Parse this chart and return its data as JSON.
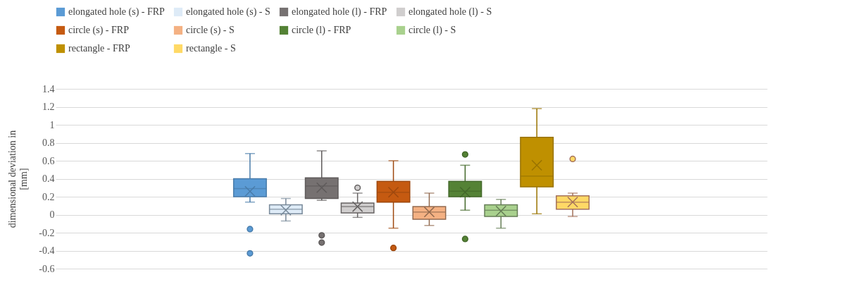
{
  "chart_data": {
    "type": "box",
    "ylabel": "dimensional deviation in [mm]",
    "categories": [
      null
    ],
    "ylim": [
      -0.6,
      1.4
    ],
    "yticks": [
      -0.6,
      -0.4,
      -0.2,
      0,
      0.2,
      0.4,
      0.6,
      0.8,
      1,
      1.2,
      1.4
    ],
    "grid": "y",
    "legend": "top",
    "tick_labels": "y",
    "series": [
      {
        "name": "elongated hole (s) - FRP",
        "color": "#5b9bd5",
        "boxes": [
          {
            "low": 0.14,
            "q1": 0.2,
            "median": 0.29,
            "q3": 0.4,
            "high": 0.68,
            "mean": 0.26,
            "outliers": [
              -0.16,
              -0.43
            ]
          }
        ]
      },
      {
        "name": "elongated hole (s) - S",
        "color": "#deebf7",
        "boxes": [
          {
            "low": -0.07,
            "q1": 0.01,
            "median": 0.06,
            "q3": 0.11,
            "high": 0.18,
            "mean": 0.05
          }
        ]
      },
      {
        "name": "elongated hole (l) - FRP",
        "color": "#767171",
        "boxes": [
          {
            "low": 0.16,
            "q1": 0.18,
            "median": 0.32,
            "q3": 0.41,
            "high": 0.71,
            "mean": 0.3,
            "outliers": [
              -0.23,
              -0.31
            ]
          }
        ]
      },
      {
        "name": "elongated hole (l) - S",
        "color": "#d0cece",
        "boxes": [
          {
            "low": -0.03,
            "q1": 0.02,
            "median": 0.09,
            "q3": 0.13,
            "high": 0.24,
            "mean": 0.09,
            "outliers": [
              0.3
            ]
          }
        ]
      },
      {
        "name": "circle (s) - FRP",
        "color": "#c55a11",
        "boxes": [
          {
            "low": -0.15,
            "q1": 0.14,
            "median": 0.25,
            "q3": 0.37,
            "high": 0.6,
            "mean": 0.25,
            "outliers": [
              -0.37
            ]
          }
        ]
      },
      {
        "name": "circle (s) - S",
        "color": "#f4b183",
        "boxes": [
          {
            "low": -0.12,
            "q1": -0.05,
            "median": 0.03,
            "q3": 0.09,
            "high": 0.24,
            "mean": 0.03
          }
        ]
      },
      {
        "name": "circle (l) - FRP",
        "color": "#548235",
        "boxes": [
          {
            "low": 0.05,
            "q1": 0.2,
            "median": 0.26,
            "q3": 0.37,
            "high": 0.55,
            "mean": 0.25,
            "outliers": [
              0.67,
              -0.27
            ]
          }
        ]
      },
      {
        "name": "circle (l) - S",
        "color": "#a9d18e",
        "boxes": [
          {
            "low": -0.15,
            "q1": -0.02,
            "median": 0.05,
            "q3": 0.11,
            "high": 0.17,
            "mean": 0.04
          }
        ]
      },
      {
        "name": "rectangle - FRP",
        "color": "#bf9000",
        "boxes": [
          {
            "low": 0.01,
            "q1": 0.31,
            "median": 0.43,
            "q3": 0.86,
            "high": 1.18,
            "mean": 0.55
          }
        ]
      },
      {
        "name": "rectangle - S",
        "color": "#ffd966",
        "boxes": [
          {
            "low": -0.02,
            "q1": 0.06,
            "median": 0.14,
            "q3": 0.21,
            "high": 0.24,
            "mean": 0.14,
            "outliers": [
              0.62
            ]
          }
        ]
      }
    ]
  }
}
